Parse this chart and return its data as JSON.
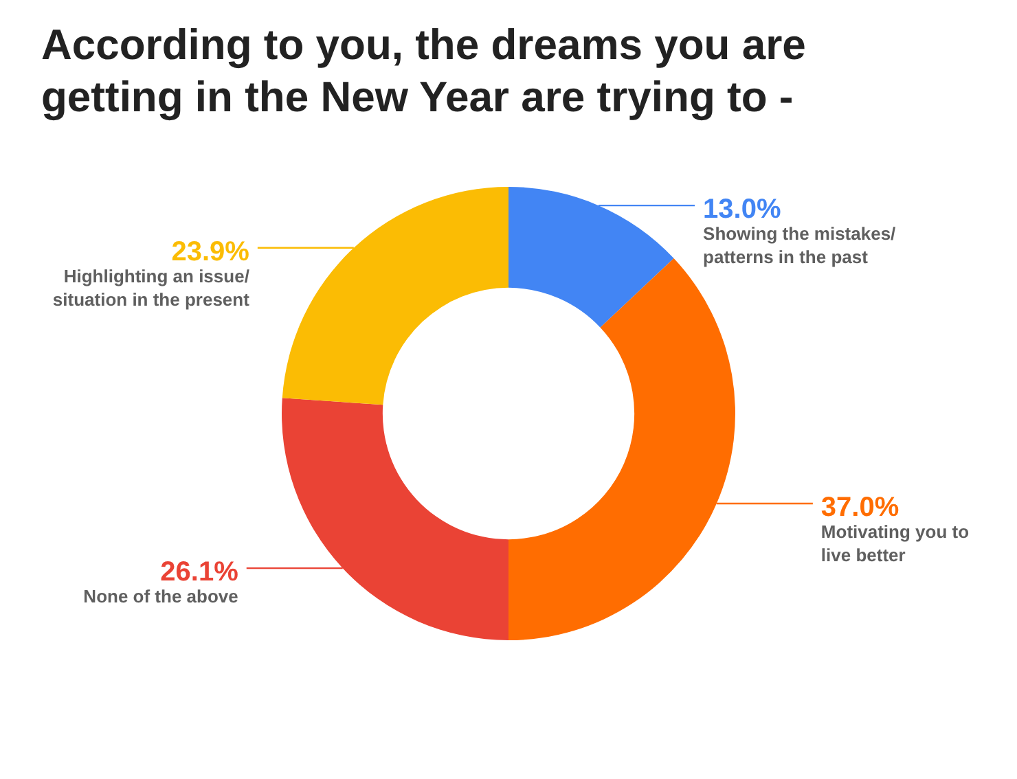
{
  "chart_data": {
    "type": "donut",
    "title": "According to you, the dreams you are getting in the New Year are trying to -",
    "categories": [
      "Showing the mistakes/\npatterns in the past",
      "Motivating you to\nlive better",
      "None of the above",
      "Highlighting an issue/\nsituation in the present"
    ],
    "values": [
      13.0,
      37.0,
      26.1,
      23.9
    ],
    "colors": [
      "#4285f4",
      "#ff6d01",
      "#ea4335",
      "#fbbc04"
    ],
    "value_labels": [
      "13.0%",
      "37.0%",
      "26.1%",
      "23.9%"
    ]
  }
}
